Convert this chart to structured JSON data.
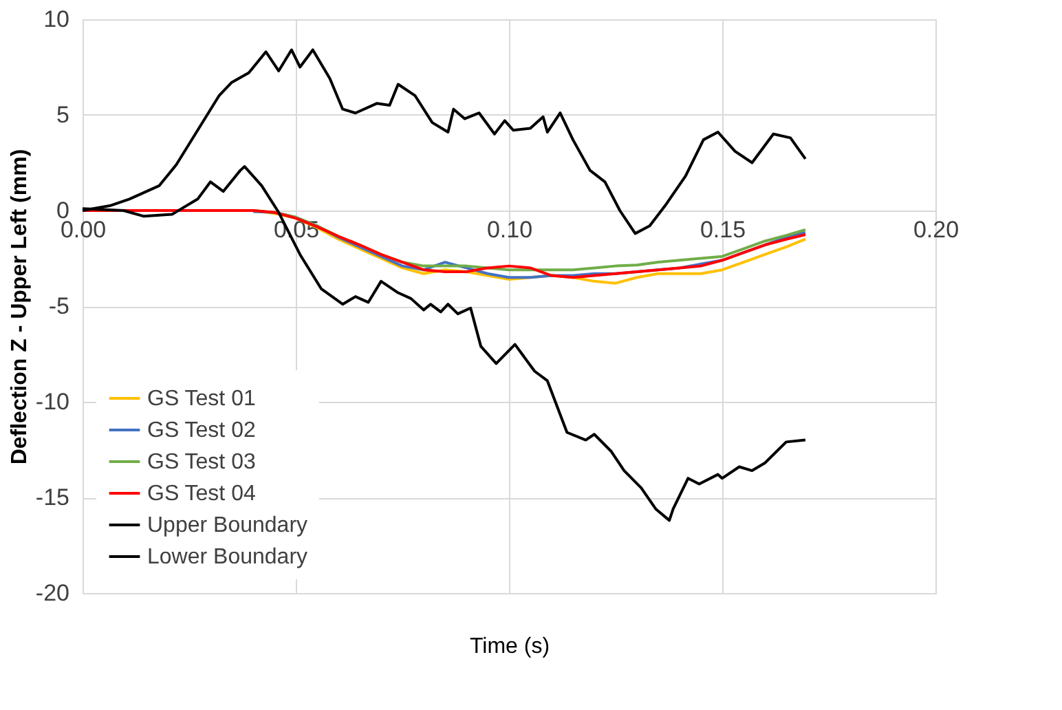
{
  "chart_data": {
    "type": "line",
    "xlabel": "Time (s)",
    "ylabel": "Deflection Z - Upper Left (mm)",
    "x": [
      0,
      0.02,
      0.04,
      0.045,
      0.05,
      0.055,
      0.06,
      0.065,
      0.07,
      0.075,
      0.08,
      0.085,
      0.09,
      0.095,
      0.1,
      0.105,
      0.11,
      0.115,
      0.12,
      0.125,
      0.13,
      0.135,
      0.14,
      0.145,
      0.15,
      0.155,
      0.16,
      0.165,
      0.1695
    ],
    "series": [
      {
        "name": "GS Test 01",
        "color": "#ffc000",
        "values": [
          null,
          null,
          0,
          -0.15,
          -0.4,
          -0.9,
          -1.5,
          -2.0,
          -2.5,
          -3.0,
          -3.3,
          -3.1,
          -3.2,
          -3.4,
          -3.6,
          -3.5,
          -3.4,
          -3.5,
          -3.7,
          -3.8,
          -3.5,
          -3.3,
          -3.3,
          -3.3,
          -3.1,
          -2.7,
          -2.3,
          -1.9,
          -1.5
        ]
      },
      {
        "name": "GS Test 02",
        "color": "#4472c4",
        "values": [
          null,
          null,
          -0.05,
          -0.1,
          -0.35,
          -0.8,
          -1.4,
          -1.9,
          -2.4,
          -2.9,
          -3.1,
          -2.7,
          -3.0,
          -3.3,
          -3.5,
          -3.5,
          -3.4,
          -3.4,
          -3.3,
          -3.3,
          -3.2,
          -3.1,
          -3.0,
          -2.8,
          -2.6,
          -2.2,
          -1.8,
          -1.4,
          -1.15
        ]
      },
      {
        "name": "GS Test 03",
        "color": "#70ad47",
        "values": [
          null,
          null,
          0,
          -0.1,
          -0.35,
          -0.8,
          -1.35,
          -1.8,
          -2.3,
          -2.7,
          -2.9,
          -2.9,
          -2.9,
          -3.0,
          -3.1,
          -3.1,
          -3.1,
          -3.1,
          -3.0,
          -2.9,
          -2.85,
          -2.7,
          -2.6,
          -2.5,
          -2.4,
          -2.0,
          -1.6,
          -1.3,
          -1.0
        ]
      },
      {
        "name": "GS Test 04",
        "color": "#ff0000",
        "values": [
          0,
          0,
          0,
          -0.1,
          -0.4,
          -0.85,
          -1.35,
          -1.8,
          -2.3,
          -2.7,
          -3.1,
          -3.2,
          -3.2,
          -3.0,
          -2.9,
          -3.0,
          -3.4,
          -3.5,
          -3.4,
          -3.3,
          -3.2,
          -3.1,
          -3.0,
          -2.9,
          -2.6,
          -2.2,
          -1.8,
          -1.5,
          -1.26
        ]
      },
      {
        "name": "Upper Boundary",
        "color": "#000000",
        "x": [
          0,
          0.0064,
          0.011,
          0.018,
          0.022,
          0.027,
          0.032,
          0.035,
          0.039,
          0.043,
          0.046,
          0.049,
          0.051,
          0.054,
          0.058,
          0.061,
          0.064,
          0.069,
          0.072,
          0.074,
          0.078,
          0.082,
          0.0857,
          0.087,
          0.0896,
          0.093,
          0.0966,
          0.099,
          0.101,
          0.105,
          0.108,
          0.109,
          0.112,
          0.115,
          0.119,
          0.1225,
          0.126,
          0.1296,
          0.133,
          0.1366,
          0.1414,
          0.1456,
          0.149,
          0.153,
          0.157,
          0.162,
          0.166,
          0.1695
        ],
        "values": [
          0,
          0.25,
          0.6,
          1.3,
          2.4,
          4.2,
          6.0,
          6.7,
          7.2,
          8.3,
          7.3,
          8.4,
          7.5,
          8.4,
          6.9,
          5.3,
          5.1,
          5.6,
          5.5,
          6.6,
          6.0,
          4.6,
          4.1,
          5.3,
          4.8,
          5.1,
          4.0,
          4.7,
          4.2,
          4.3,
          4.9,
          4.1,
          5.1,
          3.7,
          2.1,
          1.5,
          0,
          -1.2,
          -0.8,
          0.25,
          1.8,
          3.7,
          4.1,
          3.1,
          2.5,
          4.0,
          3.8,
          2.7
        ]
      },
      {
        "name": "Lower Boundary",
        "color": "#000000",
        "x": [
          0,
          0.0096,
          0.0144,
          0.021,
          0.027,
          0.03,
          0.033,
          0.037,
          0.038,
          0.042,
          0.046,
          0.051,
          0.056,
          0.061,
          0.064,
          0.067,
          0.07,
          0.074,
          0.077,
          0.08,
          0.0816,
          0.084,
          0.0857,
          0.088,
          0.091,
          0.0934,
          0.097,
          0.1014,
          0.106,
          0.109,
          0.1136,
          0.118,
          0.12,
          0.124,
          0.127,
          0.131,
          0.1344,
          0.1376,
          0.1385,
          0.142,
          0.1446,
          0.149,
          0.15,
          0.154,
          0.157,
          0.16,
          0.165,
          0.1695
        ],
        "values": [
          0.1,
          0,
          -0.3,
          -0.2,
          0.6,
          1.5,
          1.0,
          2.1,
          2.3,
          1.3,
          -0.1,
          -2.3,
          -4.1,
          -4.9,
          -4.5,
          -4.8,
          -3.7,
          -4.3,
          -4.6,
          -5.2,
          -4.9,
          -5.3,
          -4.9,
          -5.4,
          -5.1,
          -7.1,
          -8.0,
          -7.0,
          -8.4,
          -8.9,
          -11.6,
          -12.0,
          -11.7,
          -12.6,
          -13.6,
          -14.5,
          -15.6,
          -16.2,
          -15.6,
          -14.0,
          -14.3,
          -13.8,
          -14.0,
          -13.4,
          -13.6,
          -13.2,
          -12.1,
          -12.0
        ]
      }
    ],
    "xlim": [
      0,
      0.2
    ],
    "xticks": [
      {
        "value": 0,
        "label": "0.00"
      },
      {
        "value": 0.05,
        "label": "0.05"
      },
      {
        "value": 0.1,
        "label": "0.10"
      },
      {
        "value": 0.15,
        "label": "0.15"
      },
      {
        "value": 0.2,
        "label": "0.20"
      }
    ],
    "ylim": [
      -20,
      10
    ],
    "yticks": [
      -20,
      -15,
      -10,
      -5,
      0,
      5,
      10
    ],
    "grid": true,
    "legend": "bottom left",
    "marker": "none",
    "line_style": "solid"
  }
}
